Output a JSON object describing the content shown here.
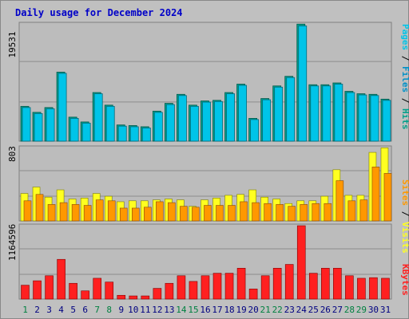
{
  "title": "Daily usage for December 2024",
  "colors": {
    "pages": "#00c4e8",
    "pages_dark": "#006b7d",
    "files": "#0090c8",
    "hits": "#00a08a",
    "hits_dark": "#005b4e",
    "visits": "#ffff20",
    "sites": "#ff9800",
    "sites_dark": "#8a4a00",
    "kbytes": "#ff2020",
    "kbytes_dark": "#800000",
    "weekend_label": "#008040",
    "weekday_label": "#000080"
  },
  "chart_data": [
    {
      "type": "bar",
      "name": "hits-files-pages",
      "ymax_label": "19531",
      "ylim": [
        0,
        19531
      ],
      "legend": [
        "Pages",
        "Files",
        "Hits"
      ],
      "x": [
        "1",
        "2",
        "3",
        "4",
        "5",
        "6",
        "7",
        "8",
        "9",
        "10",
        "11",
        "12",
        "13",
        "14",
        "15",
        "16",
        "17",
        "18",
        "19",
        "20",
        "21",
        "22",
        "23",
        "24",
        "25",
        "26",
        "27",
        "28",
        "29",
        "30",
        "31"
      ],
      "series": [
        {
          "name": "Hits",
          "values": [
            5800,
            4800,
            5600,
            11500,
            4000,
            3200,
            8100,
            6000,
            2700,
            2600,
            2400,
            5000,
            6300,
            7800,
            6000,
            6700,
            6800,
            8100,
            9500,
            3800,
            7100,
            9200,
            10800,
            19500,
            9400,
            9400,
            9700,
            8300,
            7900,
            7800,
            7000
          ]
        },
        {
          "name": "Pages",
          "values": [
            5600,
            4600,
            5400,
            11300,
            3800,
            3000,
            7900,
            5800,
            2500,
            2400,
            2200,
            4800,
            6100,
            7600,
            5800,
            6500,
            6600,
            7900,
            9300,
            3600,
            6900,
            9000,
            10600,
            19200,
            9200,
            9200,
            9500,
            8100,
            7700,
            7600,
            6800
          ]
        }
      ]
    },
    {
      "type": "bar",
      "name": "visits-sites",
      "ymax_label": "803",
      "ylim": [
        0,
        803
      ],
      "legend": [
        "Sites",
        "Visits"
      ],
      "x": [
        "1",
        "2",
        "3",
        "4",
        "5",
        "6",
        "7",
        "8",
        "9",
        "10",
        "11",
        "12",
        "13",
        "14",
        "15",
        "16",
        "17",
        "18",
        "19",
        "20",
        "21",
        "22",
        "23",
        "24",
        "25",
        "26",
        "27",
        "28",
        "29",
        "30",
        "31"
      ],
      "series": [
        {
          "name": "Visits",
          "values": [
            300,
            370,
            260,
            340,
            240,
            250,
            300,
            270,
            210,
            220,
            220,
            230,
            240,
            230,
            160,
            230,
            250,
            280,
            290,
            340,
            260,
            240,
            190,
            220,
            220,
            270,
            560,
            280,
            280,
            750,
            800
          ]
        },
        {
          "name": "Sites",
          "values": [
            220,
            290,
            180,
            200,
            180,
            170,
            230,
            220,
            140,
            140,
            150,
            210,
            200,
            160,
            150,
            170,
            170,
            170,
            210,
            200,
            190,
            180,
            160,
            180,
            190,
            190,
            440,
            220,
            230,
            590,
            520
          ]
        }
      ]
    },
    {
      "type": "bar",
      "name": "kbytes",
      "ymax_label": "1164596",
      "ylim": [
        0,
        1164596
      ],
      "legend": [
        "KBytes"
      ],
      "x": [
        "1",
        "2",
        "3",
        "4",
        "5",
        "6",
        "7",
        "8",
        "9",
        "10",
        "11",
        "12",
        "13",
        "14",
        "15",
        "16",
        "17",
        "18",
        "19",
        "20",
        "21",
        "22",
        "23",
        "24",
        "25",
        "26",
        "27",
        "28",
        "29",
        "30",
        "31"
      ],
      "series": [
        {
          "name": "KBytes",
          "values": [
            220000,
            290000,
            370000,
            630000,
            250000,
            130000,
            330000,
            270000,
            60000,
            50000,
            50000,
            170000,
            250000,
            370000,
            280000,
            370000,
            410000,
            410000,
            490000,
            160000,
            370000,
            490000,
            550000,
            1164596,
            410000,
            490000,
            490000,
            370000,
            330000,
            340000,
            330000
          ]
        }
      ]
    }
  ],
  "weekend_days": [
    "1",
    "7",
    "8",
    "14",
    "15",
    "21",
    "22",
    "28",
    "29"
  ]
}
